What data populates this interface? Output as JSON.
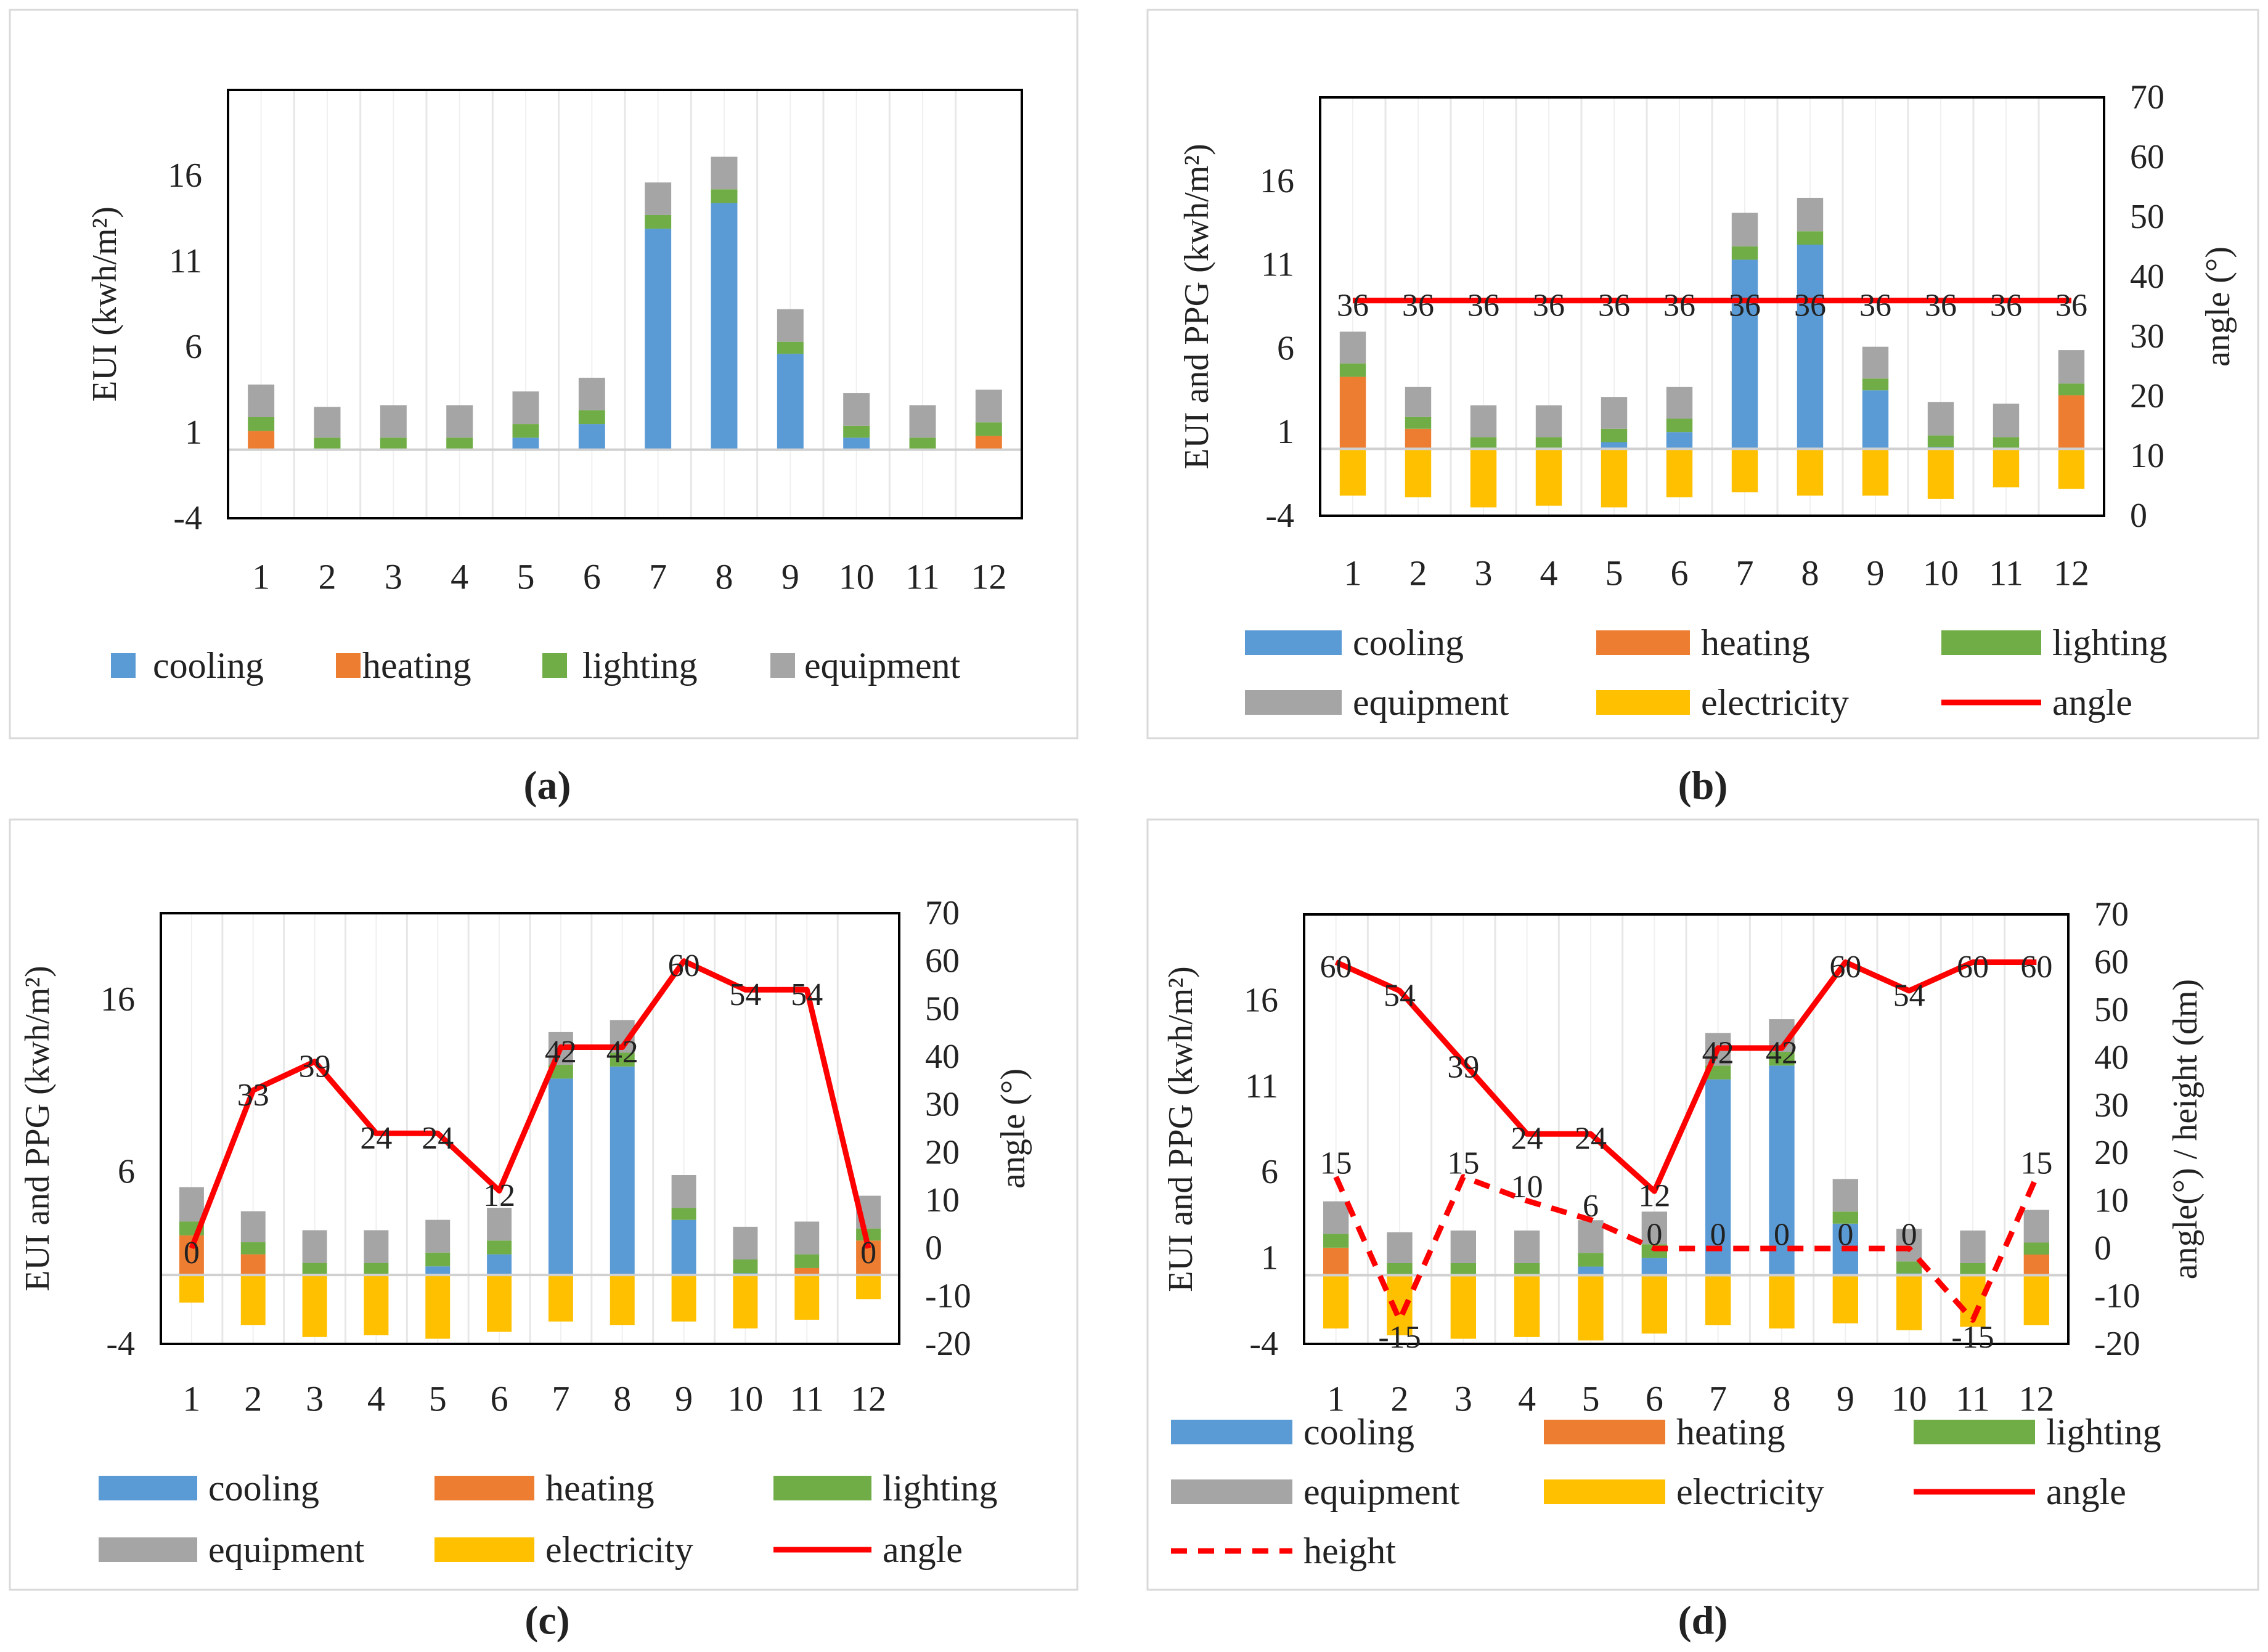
{
  "colors": {
    "cooling": "#5B9BD5",
    "heating": "#ED7D31",
    "lighting": "#70AD47",
    "equipment": "#A5A5A5",
    "electricity": "#FFC000",
    "angle": "#FF0000",
    "height": "#FF0000"
  },
  "captions": [
    "(a)",
    "(b)",
    "(c)",
    "(d)"
  ],
  "chart_data": [
    {
      "id": "a",
      "type": "bar",
      "stacked": true,
      "caption": "(a)",
      "categories": [
        "1",
        "2",
        "3",
        "4",
        "5",
        "6",
        "7",
        "8",
        "9",
        "10",
        "11",
        "12"
      ],
      "ylabel": "EUI (kwh/m²)",
      "ylim": [
        -4,
        21
      ],
      "yticks": [
        16,
        11,
        6,
        1,
        -4
      ],
      "legend": [
        "cooling",
        "heating",
        "lighting",
        "equipment"
      ],
      "series": [
        {
          "name": "cooling",
          "values": [
            0,
            0,
            0,
            0,
            0.7,
            1.5,
            12.9,
            14.4,
            5.6,
            0.7,
            0,
            0
          ]
        },
        {
          "name": "heating",
          "values": [
            1.1,
            0,
            0,
            0,
            0,
            0,
            0,
            0,
            0,
            0,
            0,
            0.8
          ]
        },
        {
          "name": "lighting",
          "values": [
            0.8,
            0.7,
            0.7,
            0.7,
            0.8,
            0.8,
            0.8,
            0.8,
            0.7,
            0.7,
            0.7,
            0.8
          ]
        },
        {
          "name": "equipment",
          "values": [
            1.9,
            1.8,
            1.9,
            1.9,
            1.9,
            1.9,
            1.9,
            1.9,
            1.9,
            1.9,
            1.9,
            1.9
          ]
        }
      ]
    },
    {
      "id": "b",
      "type": "bar",
      "stacked": true,
      "caption": "(b)",
      "categories": [
        "1",
        "2",
        "3",
        "4",
        "5",
        "6",
        "7",
        "8",
        "9",
        "10",
        "11",
        "12"
      ],
      "ylabel": "EUI and PPG   (kwh/m²)",
      "y2label": "angle (°)",
      "ylim": [
        -4,
        21
      ],
      "yticks": [
        16,
        11,
        6,
        1,
        -4
      ],
      "y2lim": [
        0,
        70
      ],
      "y2ticks": [
        70,
        60,
        50,
        40,
        30,
        20,
        10,
        0
      ],
      "legend": [
        "cooling",
        "heating",
        "lighting",
        "equipment",
        "electricity",
        "angle"
      ],
      "series": [
        {
          "name": "cooling",
          "values": [
            0,
            0,
            0,
            0,
            0.4,
            1.0,
            11.3,
            12.2,
            3.5,
            0.1,
            0,
            0
          ]
        },
        {
          "name": "heating",
          "values": [
            4.3,
            1.2,
            0,
            0,
            0,
            0,
            0,
            0,
            0,
            0,
            0,
            3.2
          ]
        },
        {
          "name": "lighting",
          "values": [
            0.8,
            0.7,
            0.7,
            0.7,
            0.8,
            0.8,
            0.8,
            0.8,
            0.7,
            0.7,
            0.7,
            0.7
          ]
        },
        {
          "name": "equipment",
          "values": [
            1.9,
            1.8,
            1.9,
            1.9,
            1.9,
            1.9,
            2.0,
            2.0,
            1.9,
            2.0,
            2.0,
            2.0
          ]
        },
        {
          "name": "electricity",
          "values": [
            -2.8,
            -2.9,
            -3.5,
            -3.4,
            -3.5,
            -2.9,
            -2.6,
            -2.8,
            -2.8,
            -3.0,
            -2.3,
            -2.4
          ]
        }
      ],
      "lines": [
        {
          "name": "angle",
          "axis": "y2",
          "dashed": false,
          "values": [
            36,
            36,
            36,
            36,
            36,
            36,
            36,
            36,
            36,
            36,
            36,
            36
          ],
          "labels": [
            "36",
            "36",
            "36",
            "36",
            "36",
            "36",
            "36",
            "36",
            "36",
            "36",
            "36",
            "36"
          ]
        }
      ]
    },
    {
      "id": "c",
      "type": "bar",
      "stacked": true,
      "caption": "(c)",
      "categories": [
        "1",
        "2",
        "3",
        "4",
        "5",
        "6",
        "7",
        "8",
        "9",
        "10",
        "11",
        "12"
      ],
      "ylabel": "EUI and PPG   (kwh/m²)",
      "y2label": "angle (°)",
      "ylim": [
        -4,
        21
      ],
      "yticks": [
        16,
        6,
        -4
      ],
      "y2lim": [
        -20,
        70
      ],
      "y2ticks": [
        70,
        60,
        50,
        40,
        30,
        20,
        10,
        0,
        -10,
        -20
      ],
      "legend": [
        "cooling",
        "heating",
        "lighting",
        "equipment",
        "electricity",
        "angle"
      ],
      "series": [
        {
          "name": "cooling",
          "values": [
            0,
            0,
            0,
            0,
            0.5,
            1.2,
            11.4,
            12.1,
            3.2,
            0.1,
            0,
            0
          ]
        },
        {
          "name": "heating",
          "values": [
            2.3,
            1.2,
            0,
            0,
            0,
            0,
            0,
            0,
            0,
            0,
            0.4,
            2.0
          ]
        },
        {
          "name": "lighting",
          "values": [
            0.8,
            0.7,
            0.7,
            0.7,
            0.8,
            0.8,
            0.8,
            0.8,
            0.7,
            0.8,
            0.8,
            0.7
          ]
        },
        {
          "name": "equipment",
          "values": [
            2.0,
            1.8,
            1.9,
            1.9,
            1.9,
            1.9,
            1.9,
            1.9,
            1.9,
            1.9,
            1.9,
            1.9
          ]
        },
        {
          "name": "electricity",
          "values": [
            -1.6,
            -2.9,
            -3.6,
            -3.5,
            -3.7,
            -3.3,
            -2.7,
            -2.9,
            -2.7,
            -3.1,
            -2.6,
            -1.4
          ]
        }
      ],
      "lines": [
        {
          "name": "angle",
          "axis": "y2",
          "dashed": false,
          "values": [
            0,
            33,
            39,
            24,
            24,
            12,
            42,
            42,
            60,
            54,
            54,
            0
          ],
          "labels": [
            "0",
            "33",
            "39",
            "24",
            "24",
            "12",
            "42",
            "42",
            "60",
            "54",
            "54",
            "0"
          ]
        }
      ]
    },
    {
      "id": "d",
      "type": "bar",
      "stacked": true,
      "caption": "(d)",
      "categories": [
        "1",
        "2",
        "3",
        "4",
        "5",
        "6",
        "7",
        "8",
        "9",
        "10",
        "11",
        "12"
      ],
      "ylabel": "EUI and PPG   (kwh/m²)",
      "y2label": "angle(°) / height (dm)",
      "ylim": [
        -4,
        21
      ],
      "yticks": [
        16,
        11,
        6,
        1,
        -4
      ],
      "y2lim": [
        -20,
        70
      ],
      "y2ticks": [
        70,
        60,
        50,
        40,
        30,
        20,
        10,
        0,
        -10,
        -20
      ],
      "legend": [
        "cooling",
        "heating",
        "lighting",
        "equipment",
        "electricity",
        "angle",
        "height"
      ],
      "series": [
        {
          "name": "cooling",
          "values": [
            0,
            0,
            0,
            0,
            0.5,
            1.0,
            11.4,
            12.2,
            3.0,
            0.1,
            0,
            0
          ]
        },
        {
          "name": "heating",
          "values": [
            1.6,
            0,
            0,
            0,
            0,
            0,
            0,
            0,
            0,
            0,
            0,
            1.2
          ]
        },
        {
          "name": "lighting",
          "values": [
            0.8,
            0.7,
            0.7,
            0.7,
            0.8,
            0.8,
            0.8,
            0.8,
            0.7,
            0.7,
            0.7,
            0.7
          ]
        },
        {
          "name": "equipment",
          "values": [
            1.9,
            1.8,
            1.9,
            1.9,
            1.9,
            1.9,
            1.9,
            1.9,
            1.9,
            1.9,
            1.9,
            1.9
          ]
        },
        {
          "name": "electricity",
          "values": [
            -3.1,
            -3.5,
            -3.7,
            -3.6,
            -3.8,
            -3.4,
            -2.9,
            -3.1,
            -2.8,
            -3.2,
            -3.0,
            -2.9
          ]
        }
      ],
      "lines": [
        {
          "name": "angle",
          "axis": "y2",
          "dashed": false,
          "values": [
            60,
            54,
            39,
            24,
            24,
            12,
            42,
            42,
            60,
            54,
            60,
            60
          ],
          "labels": [
            "60",
            "54",
            "39",
            "24",
            "24",
            "12",
            "42",
            "42",
            "60",
            "54",
            "60",
            "60"
          ]
        },
        {
          "name": "height",
          "axis": "y2",
          "dashed": true,
          "values": [
            15,
            -15,
            15,
            10,
            6,
            0,
            0,
            0,
            0,
            0,
            -15,
            15
          ],
          "labels": [
            "15",
            "-15",
            "15",
            "10",
            "6",
            "0",
            "0",
            "0",
            "0",
            "0",
            "-15",
            "15"
          ]
        }
      ]
    }
  ]
}
